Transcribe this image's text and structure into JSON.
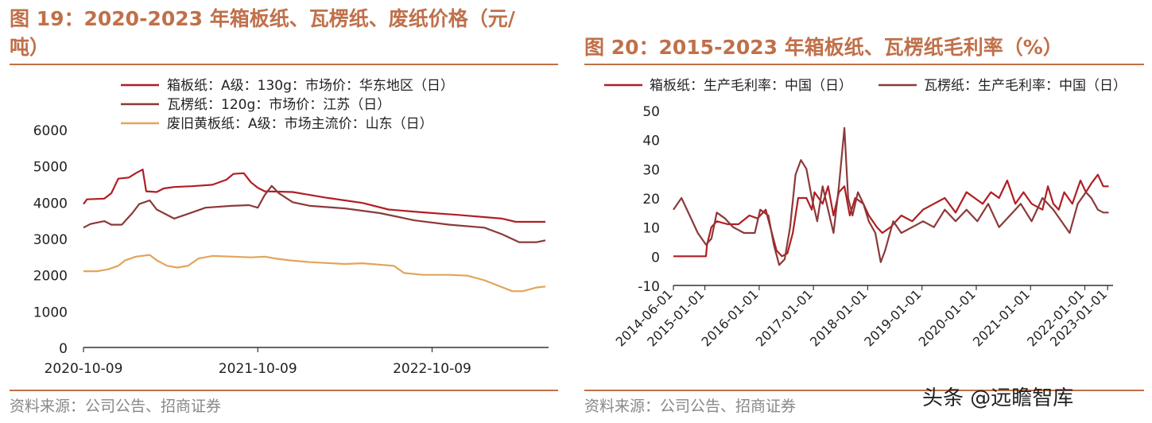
{
  "left": {
    "title_line1": "图 19：2020-2023 年箱板纸、瓦楞纸、废纸价格（元/",
    "title_line2": "吨）",
    "source": "资料来源：公司公告、招商证券"
  },
  "right": {
    "title": "图 20：2015-2023 年箱板纸、瓦楞纸毛利率（%）",
    "source": "资料来源：公司公告、招商证券"
  },
  "watermark": "头条 @远瞻智库",
  "colors": {
    "accent": "#c0704a",
    "red": "#b01e23",
    "brown": "#8b3a3a",
    "gold": "#e2a55a"
  },
  "chart_data": [
    {
      "type": "line",
      "title": "2020-2023 年箱板纸、瓦楞纸、废纸价格（元/吨）",
      "ylim": [
        0,
        6000
      ],
      "yticks": [
        "0",
        "1000",
        "2000",
        "3000",
        "4000",
        "5000",
        "6000"
      ],
      "xticks": [
        "2020-10-09",
        "2021-10-09",
        "2022-10-09"
      ],
      "x_range": [
        "2020-10-09",
        "2023-06-30"
      ],
      "series": [
        {
          "name": "箱板纸：A级：130g：市场价：华东地区（日）",
          "color": "#b01e23",
          "points": [
            [
              0,
              3950
            ],
            [
              0.02,
              4080
            ],
            [
              0.12,
              4100
            ],
            [
              0.16,
              4250
            ],
            [
              0.2,
              4650
            ],
            [
              0.26,
              4680
            ],
            [
              0.3,
              4800
            ],
            [
              0.34,
              4900
            ],
            [
              0.36,
              4300
            ],
            [
              0.42,
              4280
            ],
            [
              0.46,
              4380
            ],
            [
              0.52,
              4420
            ],
            [
              0.62,
              4440
            ],
            [
              0.68,
              4460
            ],
            [
              0.74,
              4480
            ],
            [
              0.82,
              4620
            ],
            [
              0.86,
              4780
            ],
            [
              0.92,
              4800
            ],
            [
              0.96,
              4550
            ],
            [
              1.0,
              4400
            ],
            [
              1.04,
              4300
            ],
            [
              1.2,
              4280
            ],
            [
              1.4,
              4120
            ],
            [
              1.6,
              3980
            ],
            [
              1.75,
              3800
            ],
            [
              1.95,
              3720
            ],
            [
              2.15,
              3650
            ],
            [
              2.4,
              3550
            ],
            [
              2.48,
              3460
            ],
            [
              2.65,
              3460
            ]
          ]
        },
        {
          "name": "瓦楞纸：120g：市场价：江苏（日）",
          "color": "#8b3a3a",
          "points": [
            [
              0,
              3300
            ],
            [
              0.04,
              3400
            ],
            [
              0.12,
              3480
            ],
            [
              0.16,
              3380
            ],
            [
              0.22,
              3380
            ],
            [
              0.28,
              3700
            ],
            [
              0.32,
              3950
            ],
            [
              0.38,
              4050
            ],
            [
              0.42,
              3800
            ],
            [
              0.52,
              3550
            ],
            [
              0.6,
              3680
            ],
            [
              0.7,
              3850
            ],
            [
              0.85,
              3900
            ],
            [
              0.95,
              3920
            ],
            [
              1.0,
              3850
            ],
            [
              1.04,
              4200
            ],
            [
              1.08,
              4450
            ],
            [
              1.12,
              4250
            ],
            [
              1.2,
              4000
            ],
            [
              1.3,
              3900
            ],
            [
              1.5,
              3830
            ],
            [
              1.7,
              3700
            ],
            [
              1.9,
              3500
            ],
            [
              2.1,
              3380
            ],
            [
              2.3,
              3300
            ],
            [
              2.4,
              3120
            ],
            [
              2.5,
              2900
            ],
            [
              2.6,
              2900
            ],
            [
              2.65,
              2950
            ]
          ]
        },
        {
          "name": "废旧黄板纸：A级：市场主流价：山东（日）",
          "color": "#e2a55a",
          "points": [
            [
              0,
              2100
            ],
            [
              0.08,
              2100
            ],
            [
              0.14,
              2150
            ],
            [
              0.2,
              2250
            ],
            [
              0.24,
              2400
            ],
            [
              0.3,
              2500
            ],
            [
              0.38,
              2550
            ],
            [
              0.42,
              2400
            ],
            [
              0.48,
              2250
            ],
            [
              0.54,
              2200
            ],
            [
              0.6,
              2250
            ],
            [
              0.66,
              2450
            ],
            [
              0.74,
              2520
            ],
            [
              0.86,
              2500
            ],
            [
              0.96,
              2480
            ],
            [
              1.04,
              2500
            ],
            [
              1.1,
              2450
            ],
            [
              1.18,
              2400
            ],
            [
              1.3,
              2350
            ],
            [
              1.5,
              2300
            ],
            [
              1.6,
              2320
            ],
            [
              1.78,
              2250
            ],
            [
              1.84,
              2050
            ],
            [
              1.95,
              2000
            ],
            [
              2.1,
              2000
            ],
            [
              2.2,
              1980
            ],
            [
              2.3,
              1850
            ],
            [
              2.38,
              1700
            ],
            [
              2.46,
              1550
            ],
            [
              2.52,
              1550
            ],
            [
              2.6,
              1650
            ],
            [
              2.65,
              1680
            ]
          ]
        }
      ]
    },
    {
      "type": "line",
      "title": "2015-2023 年箱板纸、瓦楞纸毛利率（%）",
      "ylim": [
        -10,
        50
      ],
      "yticks": [
        "50",
        "40",
        "30",
        "20",
        "10",
        "0",
        "-10"
      ],
      "xticks": [
        "2014-06-01",
        "2015-01-01",
        "2016-01-01",
        "2017-01-01",
        "2018-01-01",
        "2019-01-01",
        "2020-01-01",
        "2021-01-01",
        "2022-01-01",
        "2023-01-01"
      ],
      "x_range": [
        "2014-06-01",
        "2023-06-30"
      ],
      "series": [
        {
          "name": "箱板纸：生产毛利率：中国（日）",
          "color": "#b01e23",
          "points": [
            [
              0,
              0
            ],
            [
              0.58,
              0
            ],
            [
              0.6,
              0
            ],
            [
              0.62,
              4
            ],
            [
              0.7,
              10
            ],
            [
              0.8,
              12
            ],
            [
              1.0,
              11
            ],
            [
              1.2,
              11
            ],
            [
              1.4,
              14
            ],
            [
              1.55,
              13
            ],
            [
              1.7,
              16
            ],
            [
              1.9,
              2
            ],
            [
              2.0,
              0
            ],
            [
              2.1,
              1
            ],
            [
              2.2,
              8
            ],
            [
              2.3,
              20
            ],
            [
              2.45,
              20
            ],
            [
              2.55,
              16
            ],
            [
              2.6,
              22
            ],
            [
              2.75,
              18
            ],
            [
              2.85,
              24
            ],
            [
              2.95,
              14
            ],
            [
              3.05,
              22
            ],
            [
              3.15,
              24
            ],
            [
              3.25,
              14
            ],
            [
              3.35,
              20
            ],
            [
              3.5,
              18
            ],
            [
              3.6,
              14
            ],
            [
              3.75,
              10
            ],
            [
              3.85,
              8
            ],
            [
              4.0,
              10
            ],
            [
              4.2,
              14
            ],
            [
              4.4,
              12
            ],
            [
              4.6,
              16
            ],
            [
              4.8,
              18
            ],
            [
              5.0,
              20
            ],
            [
              5.2,
              15
            ],
            [
              5.4,
              22
            ],
            [
              5.55,
              20
            ],
            [
              5.7,
              18
            ],
            [
              5.85,
              22
            ],
            [
              6.0,
              20
            ],
            [
              6.15,
              26
            ],
            [
              6.3,
              18
            ],
            [
              6.45,
              22
            ],
            [
              6.6,
              18
            ],
            [
              6.8,
              16
            ],
            [
              6.9,
              24
            ],
            [
              7.0,
              18
            ],
            [
              7.1,
              16
            ],
            [
              7.2,
              22
            ],
            [
              7.35,
              18
            ],
            [
              7.5,
              26
            ],
            [
              7.6,
              22
            ],
            [
              7.7,
              25
            ],
            [
              7.82,
              28
            ],
            [
              7.92,
              24
            ],
            [
              8.02,
              24
            ]
          ]
        },
        {
          "name": "瓦楞纸：生产毛利率：中国（日）",
          "color": "#8b3a3a",
          "points": [
            [
              0,
              16
            ],
            [
              0.15,
              20
            ],
            [
              0.3,
              14
            ],
            [
              0.45,
              8
            ],
            [
              0.6,
              4
            ],
            [
              0.7,
              6
            ],
            [
              0.8,
              15
            ],
            [
              0.95,
              13
            ],
            [
              1.1,
              10
            ],
            [
              1.3,
              8
            ],
            [
              1.5,
              8
            ],
            [
              1.6,
              16
            ],
            [
              1.75,
              14
            ],
            [
              1.85,
              4
            ],
            [
              1.95,
              -3
            ],
            [
              2.05,
              -1
            ],
            [
              2.15,
              10
            ],
            [
              2.25,
              28
            ],
            [
              2.35,
              33
            ],
            [
              2.45,
              30
            ],
            [
              2.55,
              20
            ],
            [
              2.65,
              12
            ],
            [
              2.75,
              24
            ],
            [
              2.85,
              16
            ],
            [
              2.95,
              8
            ],
            [
              3.05,
              24
            ],
            [
              3.15,
              44
            ],
            [
              3.22,
              20
            ],
            [
              3.3,
              14
            ],
            [
              3.4,
              22
            ],
            [
              3.5,
              18
            ],
            [
              3.6,
              12
            ],
            [
              3.72,
              8
            ],
            [
              3.82,
              -2
            ],
            [
              3.9,
              2
            ],
            [
              4.05,
              12
            ],
            [
              4.2,
              8
            ],
            [
              4.4,
              10
            ],
            [
              4.6,
              12
            ],
            [
              4.8,
              10
            ],
            [
              5.0,
              16
            ],
            [
              5.2,
              12
            ],
            [
              5.4,
              16
            ],
            [
              5.6,
              12
            ],
            [
              5.8,
              18
            ],
            [
              6.0,
              10
            ],
            [
              6.2,
              14
            ],
            [
              6.4,
              18
            ],
            [
              6.6,
              12
            ],
            [
              6.8,
              20
            ],
            [
              7.0,
              16
            ],
            [
              7.15,
              12
            ],
            [
              7.3,
              8
            ],
            [
              7.45,
              18
            ],
            [
              7.6,
              22
            ],
            [
              7.7,
              20
            ],
            [
              7.82,
              16
            ],
            [
              7.92,
              15
            ],
            [
              8.02,
              15
            ]
          ]
        }
      ]
    }
  ],
  "legend_left": [
    "箱板纸：A级：130g：市场价：华东地区（日）",
    "瓦楞纸：120g：市场价：江苏（日）",
    "废旧黄板纸：A级：市场主流价：山东（日）"
  ],
  "legend_right": [
    "箱板纸：生产毛利率：中国（日）",
    "瓦楞纸：生产毛利率：中国（日）"
  ]
}
